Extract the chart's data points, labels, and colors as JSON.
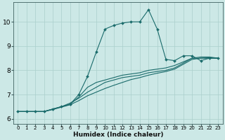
{
  "xlabel": "Humidex (Indice chaleur)",
  "ylabel": "",
  "background_color": "#cce8e6",
  "grid_color": "#aacfcc",
  "line_color": "#1a6b6b",
  "xlim": [
    -0.5,
    23.5
  ],
  "ylim": [
    5.8,
    10.8
  ],
  "xticks": [
    0,
    1,
    2,
    3,
    4,
    5,
    6,
    7,
    8,
    9,
    10,
    11,
    12,
    13,
    14,
    15,
    16,
    17,
    18,
    19,
    20,
    21,
    22,
    23
  ],
  "yticks": [
    6,
    7,
    8,
    9,
    10
  ],
  "series1_x": [
    0,
    1,
    2,
    3,
    4,
    5,
    6,
    7,
    8,
    9,
    10,
    11,
    12,
    13,
    14,
    15,
    16,
    17,
    18,
    19,
    20,
    21,
    22,
    23
  ],
  "series1_y": [
    6.3,
    6.3,
    6.3,
    6.3,
    6.4,
    6.5,
    6.6,
    7.0,
    7.75,
    8.75,
    9.7,
    9.85,
    9.95,
    10.0,
    10.0,
    10.5,
    9.7,
    8.45,
    8.4,
    8.6,
    8.6,
    8.4,
    8.5,
    8.5
  ],
  "series2_x": [
    0,
    1,
    2,
    3,
    4,
    5,
    6,
    7,
    8,
    9,
    10,
    11,
    12,
    13,
    14,
    15,
    16,
    17,
    18,
    19,
    20,
    21,
    22,
    23
  ],
  "series2_y": [
    6.3,
    6.3,
    6.3,
    6.3,
    6.4,
    6.5,
    6.6,
    6.9,
    7.3,
    7.5,
    7.6,
    7.7,
    7.8,
    7.85,
    7.9,
    8.0,
    8.05,
    8.1,
    8.2,
    8.35,
    8.5,
    8.5,
    8.5,
    8.5
  ],
  "series3_x": [
    0,
    1,
    2,
    3,
    4,
    5,
    6,
    7,
    8,
    9,
    10,
    11,
    12,
    13,
    14,
    15,
    16,
    17,
    18,
    19,
    20,
    21,
    22,
    23
  ],
  "series3_y": [
    6.3,
    6.3,
    6.3,
    6.3,
    6.4,
    6.5,
    6.65,
    6.85,
    7.1,
    7.3,
    7.5,
    7.6,
    7.7,
    7.75,
    7.8,
    7.9,
    7.95,
    8.0,
    8.1,
    8.3,
    8.5,
    8.55,
    8.55,
    8.5
  ],
  "series4_x": [
    0,
    1,
    2,
    3,
    4,
    5,
    6,
    7,
    8,
    9,
    10,
    11,
    12,
    13,
    14,
    15,
    16,
    17,
    18,
    19,
    20,
    21,
    22,
    23
  ],
  "series4_y": [
    6.3,
    6.3,
    6.3,
    6.3,
    6.38,
    6.48,
    6.58,
    6.75,
    6.95,
    7.1,
    7.25,
    7.38,
    7.5,
    7.62,
    7.7,
    7.8,
    7.88,
    7.95,
    8.05,
    8.25,
    8.45,
    8.5,
    8.52,
    8.5
  ],
  "xlabel_fontsize": 6.5,
  "tick_fontsize_x": 5.0,
  "tick_fontsize_y": 6.5,
  "linewidth": 0.8,
  "markersize": 2.0
}
